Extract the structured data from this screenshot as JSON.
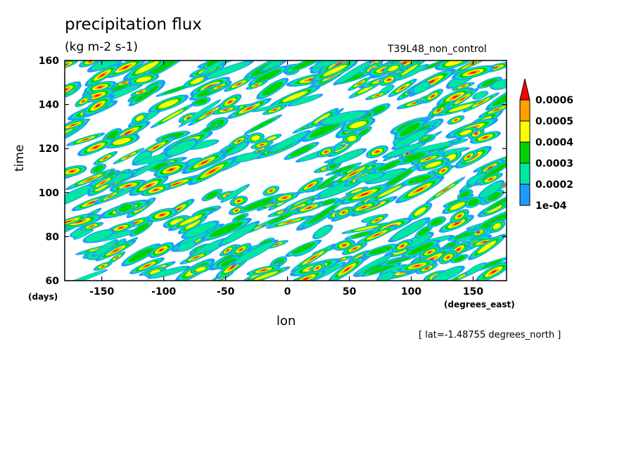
{
  "chart_data": {
    "type": "heatmap",
    "title": "precipitation flux",
    "units": "(kg m-2 s-1)",
    "run_label": "T39L48_non_control",
    "xlabel": "lon",
    "x_units": "(degrees_east)",
    "ylabel": "time",
    "y_units": "(days)",
    "note": "[ lat=-1.48755 degrees_north ]",
    "xlim": [
      -180,
      177
    ],
    "ylim": [
      60,
      160
    ],
    "x_ticks": [
      -150,
      -100,
      -50,
      0,
      50,
      100,
      150
    ],
    "x_tick_labels": [
      "-150",
      "-100",
      "-50",
      "0",
      "50",
      "100",
      "150"
    ],
    "y_ticks": [
      60,
      80,
      100,
      120,
      140,
      160
    ],
    "y_tick_labels": [
      "60",
      "80",
      "100",
      "120",
      "140",
      "160"
    ],
    "contour_levels": [
      0.0001,
      0.0002,
      0.0003,
      0.0004,
      0.0005,
      0.0006
    ],
    "colorbar_labels": [
      "1e-04",
      "0.0002",
      "0.0003",
      "0.0004",
      "0.0005",
      "0.0006"
    ],
    "colors": [
      "#1e9bff",
      "#00e8a0",
      "#00d000",
      "#ffff00",
      "#ff9f00",
      "#ff0000"
    ],
    "background_color": "#ffffff",
    "colorbar_extend": "max",
    "grid": false
  }
}
